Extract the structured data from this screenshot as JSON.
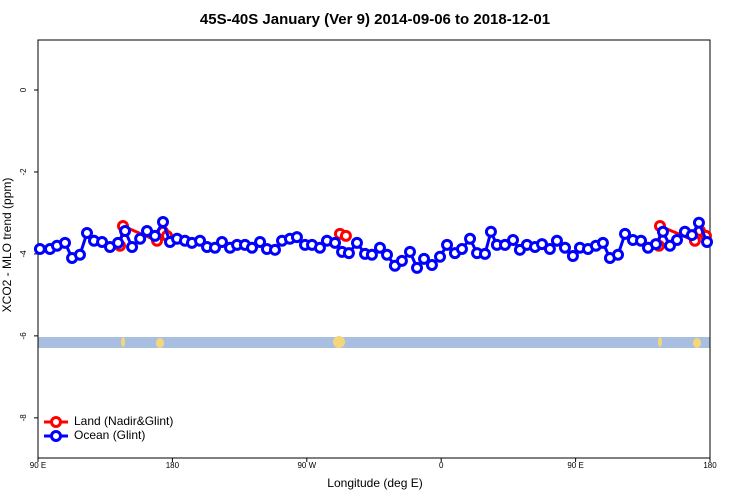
{
  "chart_data": {
    "type": "line",
    "title": "45S-40S January (Ver 9)   2014-09-06 to 2018-12-01",
    "x_label": "Longitude (deg E)",
    "y_label": "XCO2 - MLO trend (ppm)",
    "xlim": [
      90,
      540
    ],
    "ylim": [
      -8.98,
      1.22
    ],
    "xticks": [
      {
        "value": 90,
        "label": "90 E"
      },
      180,
      {
        "value": 270,
        "label": "90 W"
      },
      {
        "value": 360,
        "label": "0"
      },
      {
        "value": 450,
        "label": "90 E"
      },
      {
        "value": 540,
        "label": "180"
      }
    ],
    "yticks": [
      0,
      -2,
      -4,
      -6,
      -8
    ],
    "legend": "bottom-left",
    "series": [
      {
        "name": "Land (Nadir&Glint)",
        "color": "#ff0000",
        "x": [
          144.9,
          146.9,
          169.7,
          173.7,
          176.4,
          null,
          292.2,
          296.2,
          null,
          505.8,
          506.5,
          529.9,
          533.3,
          537.3
        ],
        "values": [
          -3.8,
          -3.32,
          -3.68,
          -3.46,
          -3.56,
          null,
          -3.51,
          -3.56,
          null,
          -3.8,
          -3.32,
          -3.68,
          -3.44,
          -3.56
        ]
      },
      {
        "name": "Ocean (Glint)",
        "color": "#0000ff",
        "x": [
          91.3,
          98.0,
          102.7,
          108.1,
          112.8,
          118.1,
          122.8,
          127.5,
          132.9,
          138.2,
          143.6,
          148.3,
          153.0,
          158.4,
          163.0,
          168.3,
          173.7,
          178.4,
          183.1,
          188.4,
          193.1,
          198.5,
          203.2,
          208.5,
          213.2,
          218.6,
          223.3,
          228.6,
          233.3,
          238.7,
          243.3,
          248.7,
          253.4,
          258.7,
          263.4,
          268.8,
          273.5,
          278.8,
          283.5,
          288.9,
          293.6,
          298.2,
          303.6,
          309.0,
          313.6,
          319.0,
          323.7,
          329.0,
          333.7,
          339.1,
          343.8,
          348.5,
          353.8,
          359.2,
          363.9,
          369.2,
          373.9,
          379.3,
          384.0,
          389.3,
          393.3,
          397.3,
          402.7,
          408.1,
          412.7,
          417.4,
          422.8,
          427.5,
          432.8,
          437.5,
          442.9,
          448.2,
          452.9,
          458.3,
          463.6,
          468.3,
          473.0,
          478.4,
          483.1,
          488.4,
          493.8,
          498.5,
          503.8,
          508.5,
          513.2,
          517.9,
          523.2,
          527.9,
          532.6,
          538.0
        ],
        "values": [
          -3.88,
          -3.88,
          -3.8,
          -3.73,
          -4.1,
          -4.02,
          -3.49,
          -3.68,
          -3.71,
          -3.83,
          -3.73,
          -3.44,
          -3.83,
          -3.63,
          -3.44,
          -3.56,
          -3.22,
          -3.71,
          -3.63,
          -3.68,
          -3.73,
          -3.68,
          -3.83,
          -3.85,
          -3.71,
          -3.85,
          -3.78,
          -3.78,
          -3.85,
          -3.71,
          -3.88,
          -3.9,
          -3.68,
          -3.63,
          -3.59,
          -3.78,
          -3.78,
          -3.85,
          -3.68,
          -3.73,
          -3.95,
          -3.98,
          -3.73,
          -4.0,
          -4.02,
          -3.85,
          -4.02,
          -4.29,
          -4.17,
          -3.95,
          -4.34,
          -4.12,
          -4.27,
          -4.07,
          -3.78,
          -3.98,
          -3.88,
          -3.63,
          -3.98,
          -4.0,
          -3.46,
          -3.78,
          -3.78,
          -3.66,
          -3.9,
          -3.78,
          -3.83,
          -3.76,
          -3.88,
          -3.68,
          -3.85,
          -4.05,
          -3.85,
          -3.88,
          -3.8,
          -3.73,
          -4.1,
          -4.02,
          -3.51,
          -3.66,
          -3.68,
          -3.85,
          -3.76,
          -3.46,
          -3.8,
          -3.66,
          -3.46,
          -3.54,
          -3.24,
          -3.71
        ]
      }
    ]
  }
}
